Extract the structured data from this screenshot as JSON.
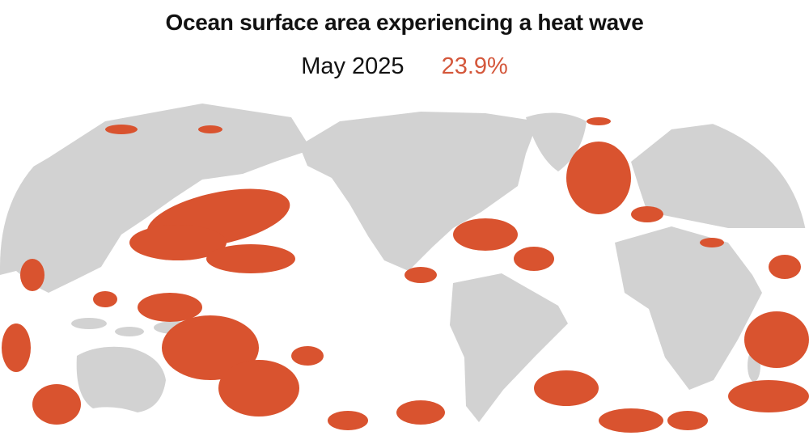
{
  "header": {
    "title": "Ocean surface area experiencing a heat wave",
    "date": "May 2025",
    "value": "23.9%"
  }
}
